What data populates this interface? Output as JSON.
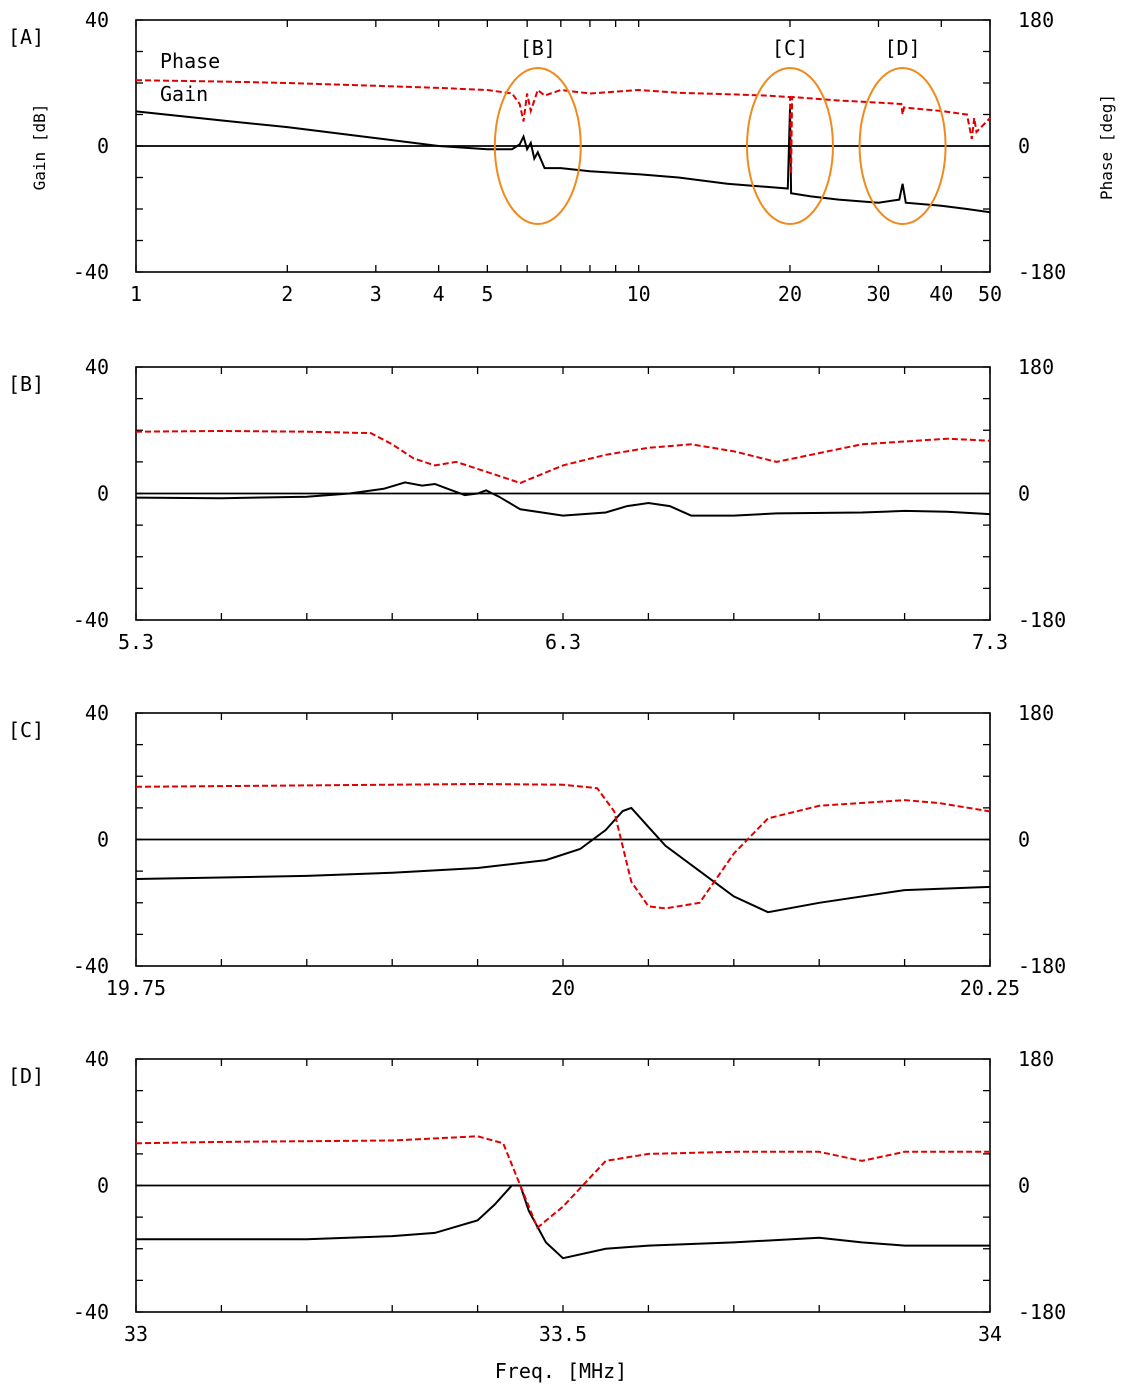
{
  "figure": {
    "y_left_title": "Gain [dB]",
    "y_right_title": "Phase [deg]",
    "x_title": "Freq. [MHz]"
  },
  "colors": {
    "gain": "#000000",
    "phase": "#e00000",
    "highlight": "#f08a1c"
  },
  "chart_data": [
    {
      "panel": "[A]",
      "type": "line",
      "xscale": "log",
      "xlim": [
        1,
        50
      ],
      "ylim": [
        -40,
        40
      ],
      "y2lim": [
        -180,
        180
      ],
      "x_ticks": [
        1,
        2,
        3,
        4,
        5,
        10,
        20,
        30,
        40,
        50
      ],
      "x_tick_labels": [
        "1",
        "2",
        "3",
        "4",
        "5",
        "10",
        "20",
        "30",
        "40",
        "50"
      ],
      "y_tick_labels": [
        "40",
        "0",
        "-40"
      ],
      "y2_tick_labels": [
        "180",
        "0",
        "-180"
      ],
      "legend_labels": [
        "Phase",
        "Gain"
      ],
      "annotations": [
        {
          "label": "[B]",
          "x": 6.3
        },
        {
          "label": "[C]",
          "x": 20
        },
        {
          "label": "[D]",
          "x": 33.5
        }
      ],
      "series": [
        {
          "name": "Gain",
          "axis": "left",
          "x": [
            1,
            1.5,
            2,
            3,
            4,
            5,
            5.6,
            5.8,
            5.9,
            6.0,
            6.1,
            6.2,
            6.3,
            6.5,
            7,
            8,
            10,
            12,
            15,
            18,
            19.8,
            20,
            20.1,
            22,
            25,
            30,
            33,
            33.5,
            34,
            40,
            45,
            50
          ],
          "y": [
            11,
            8,
            6,
            2.5,
            0,
            -1,
            -1,
            0.5,
            3,
            -1,
            1,
            -4,
            -2,
            -7,
            -7,
            -8,
            -9,
            -10,
            -12,
            -13,
            -13.5,
            12,
            -15,
            -16,
            -17,
            -18,
            -17,
            -12,
            -18,
            -19,
            -20,
            -21
          ]
        },
        {
          "name": "Phase",
          "axis": "right",
          "x": [
            1,
            1.5,
            2,
            3,
            4,
            5,
            5.6,
            5.8,
            5.9,
            6.0,
            6.1,
            6.2,
            6.3,
            6.5,
            7,
            8,
            10,
            12,
            15,
            18,
            19.8,
            20,
            20.1,
            20.2,
            22,
            25,
            30,
            33.3,
            33.5,
            33.7,
            40,
            45,
            46,
            46.5,
            47,
            50
          ],
          "y": [
            94,
            92,
            90,
            86,
            83,
            80,
            75,
            60,
            35,
            75,
            50,
            65,
            80,
            72,
            80,
            75,
            80,
            76,
            74,
            72,
            70,
            70,
            -40,
            70,
            68,
            65,
            62,
            60,
            45,
            55,
            50,
            45,
            10,
            40,
            20,
            40
          ]
        }
      ]
    },
    {
      "panel": "[B]",
      "type": "line",
      "xlim": [
        5.3,
        7.3
      ],
      "ylim": [
        -40,
        40
      ],
      "y2lim": [
        -180,
        180
      ],
      "x_ticks": [
        5.3,
        6.3,
        7.3
      ],
      "x_tick_labels": [
        "5.3",
        "6.3",
        "7.3"
      ],
      "y_tick_labels": [
        "40",
        "0",
        "-40"
      ],
      "y2_tick_labels": [
        "180",
        "0",
        "-180"
      ],
      "series": [
        {
          "name": "Gain",
          "axis": "left",
          "x": [
            5.3,
            5.5,
            5.7,
            5.8,
            5.88,
            5.93,
            5.97,
            6.0,
            6.03,
            6.07,
            6.1,
            6.12,
            6.15,
            6.2,
            6.3,
            6.4,
            6.45,
            6.5,
            6.55,
            6.6,
            6.7,
            6.8,
            7.0,
            7.1,
            7.2,
            7.3
          ],
          "y": [
            -1.3,
            -1.5,
            -1,
            0,
            1.5,
            3.5,
            2.5,
            3,
            1.5,
            -0.5,
            0,
            1,
            -1,
            -5,
            -7,
            -6,
            -4,
            -3,
            -4,
            -7,
            -7,
            -6.3,
            -6,
            -5.5,
            -5.8,
            -6.5
          ]
        },
        {
          "name": "Phase",
          "axis": "right",
          "x": [
            5.3,
            5.5,
            5.7,
            5.85,
            5.9,
            5.95,
            6.0,
            6.05,
            6.1,
            6.15,
            6.2,
            6.3,
            6.4,
            6.5,
            6.6,
            6.7,
            6.8,
            7.0,
            7.2,
            7.3
          ],
          "y": [
            88,
            89,
            88,
            86,
            70,
            50,
            40,
            45,
            35,
            25,
            15,
            40,
            55,
            65,
            70,
            60,
            45,
            70,
            78,
            75
          ]
        }
      ]
    },
    {
      "panel": "[C]",
      "type": "line",
      "xlim": [
        19.75,
        20.25
      ],
      "ylim": [
        -40,
        40
      ],
      "y2lim": [
        -180,
        180
      ],
      "x_ticks": [
        19.75,
        20,
        20.25
      ],
      "x_tick_labels": [
        "19.75",
        "20",
        "20.25"
      ],
      "y_tick_labels": [
        "40",
        "0",
        "-40"
      ],
      "y2_tick_labels": [
        "180",
        "0",
        "-180"
      ],
      "series": [
        {
          "name": "Gain",
          "axis": "left",
          "x": [
            19.75,
            19.8,
            19.85,
            19.9,
            19.95,
            19.99,
            20.01,
            20.025,
            20.035,
            20.04,
            20.05,
            20.06,
            20.08,
            20.1,
            20.12,
            20.15,
            20.2,
            20.25
          ],
          "y": [
            -12.5,
            -12,
            -11.5,
            -10.5,
            -9,
            -6.5,
            -3,
            3,
            9,
            10,
            4,
            -2,
            -10,
            -18,
            -23,
            -20,
            -16,
            -15
          ]
        },
        {
          "name": "Phase",
          "axis": "right",
          "x": [
            19.75,
            19.8,
            19.85,
            19.9,
            19.95,
            20.0,
            20.02,
            20.03,
            20.04,
            20.05,
            20.06,
            20.08,
            20.1,
            20.12,
            20.15,
            20.2,
            20.22,
            20.25
          ],
          "y": [
            75,
            76,
            77,
            78,
            79,
            78,
            73,
            40,
            -60,
            -95,
            -98,
            -90,
            -20,
            30,
            48,
            56,
            52,
            40
          ]
        }
      ]
    },
    {
      "panel": "[D]",
      "type": "line",
      "xlim": [
        33,
        34
      ],
      "ylim": [
        -40,
        40
      ],
      "y2lim": [
        -180,
        180
      ],
      "x_ticks": [
        33,
        33.5,
        34
      ],
      "x_tick_labels": [
        "33",
        "33.5",
        "34"
      ],
      "y_tick_labels": [
        "40",
        "0",
        "-40"
      ],
      "y2_tick_labels": [
        "180",
        "0",
        "-180"
      ],
      "series": [
        {
          "name": "Gain",
          "axis": "left",
          "x": [
            33,
            33.1,
            33.2,
            33.3,
            33.35,
            33.4,
            33.42,
            33.44,
            33.45,
            33.46,
            33.48,
            33.5,
            33.55,
            33.6,
            33.65,
            33.7,
            33.8,
            33.85,
            33.9,
            34
          ],
          "y": [
            -17,
            -17,
            -17,
            -16,
            -15,
            -11,
            -6,
            0,
            0,
            -8,
            -18,
            -23,
            -20,
            -19,
            -18.5,
            -18,
            -16.5,
            -18,
            -19,
            -19
          ]
        },
        {
          "name": "Phase",
          "axis": "right",
          "x": [
            33,
            33.1,
            33.2,
            33.3,
            33.4,
            33.43,
            33.45,
            33.47,
            33.5,
            33.55,
            33.6,
            33.7,
            33.8,
            33.85,
            33.9,
            34
          ],
          "y": [
            60,
            62,
            63,
            64,
            70,
            60,
            0,
            -60,
            -30,
            35,
            45,
            48,
            48,
            35,
            48,
            48
          ]
        }
      ]
    }
  ]
}
